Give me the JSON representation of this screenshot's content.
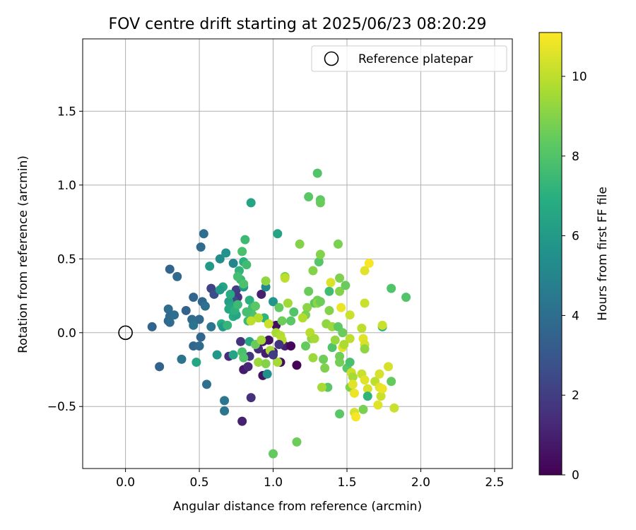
{
  "chart_data": {
    "type": "scatter",
    "title": "FOV centre drift starting at 2025/06/23 08:20:29",
    "xlabel": "Angular distance from reference (arcmin)",
    "ylabel": "Rotation from reference (arcmin)",
    "xlim": [
      -0.29,
      2.62
    ],
    "ylim": [
      -0.92,
      1.99
    ],
    "xticks": [
      {
        "v": 0.0,
        "label": "0.0"
      },
      {
        "v": 0.5,
        "label": "0.5"
      },
      {
        "v": 1.0,
        "label": "1.0"
      },
      {
        "v": 1.5,
        "label": "1.5"
      },
      {
        "v": 2.0,
        "label": "2.0"
      },
      {
        "v": 2.5,
        "label": "2.5"
      }
    ],
    "yticks": [
      {
        "v": -0.5,
        "label": "−0.5"
      },
      {
        "v": 0.0,
        "label": "0.0"
      },
      {
        "v": 0.5,
        "label": "0.5"
      },
      {
        "v": 1.0,
        "label": "1.0"
      },
      {
        "v": 1.5,
        "label": "1.5"
      }
    ],
    "grid": true,
    "legend": {
      "position": "top-right",
      "label": "Reference platepar"
    },
    "reference_point": {
      "x": 0.0,
      "y": 0.0
    },
    "colorbar": {
      "label": "Hours from first FF file",
      "colormap": "viridis",
      "range": [
        0,
        11.1
      ],
      "ticks": [
        {
          "v": 0,
          "label": "0"
        },
        {
          "v": 2,
          "label": "2"
        },
        {
          "v": 4,
          "label": "4"
        },
        {
          "v": 6,
          "label": "6"
        },
        {
          "v": 8,
          "label": "8"
        },
        {
          "v": 10,
          "label": "10"
        }
      ]
    },
    "points": [
      {
        "x": 0.79,
        "y": -0.6,
        "c": 1.0
      },
      {
        "x": 0.85,
        "y": -0.44,
        "c": 1.5
      },
      {
        "x": 0.8,
        "y": -0.25,
        "c": 0.8
      },
      {
        "x": 0.83,
        "y": -0.23,
        "c": 1.2
      },
      {
        "x": 0.93,
        "y": -0.29,
        "c": 0.6
      },
      {
        "x": 0.95,
        "y": -0.14,
        "c": 0.9
      },
      {
        "x": 0.9,
        "y": -0.11,
        "c": 1.3
      },
      {
        "x": 0.93,
        "y": -0.06,
        "c": 0.7
      },
      {
        "x": 0.97,
        "y": -0.05,
        "c": 0.5
      },
      {
        "x": 1.0,
        "y": -0.13,
        "c": 1.1
      },
      {
        "x": 1.02,
        "y": 0.05,
        "c": 0.4
      },
      {
        "x": 1.05,
        "y": -0.2,
        "c": 0.3
      },
      {
        "x": 1.08,
        "y": -0.09,
        "c": 1.0
      },
      {
        "x": 1.12,
        "y": -0.09,
        "c": 0.2
      },
      {
        "x": 1.16,
        "y": -0.22,
        "c": 0.1
      },
      {
        "x": 0.92,
        "y": 0.26,
        "c": 1.0
      },
      {
        "x": 0.78,
        "y": -0.06,
        "c": 1.6
      },
      {
        "x": 0.75,
        "y": 0.29,
        "c": 2.0
      },
      {
        "x": 0.76,
        "y": 0.24,
        "c": 1.8
      },
      {
        "x": 0.58,
        "y": 0.3,
        "c": 2.2
      },
      {
        "x": 0.6,
        "y": 0.26,
        "c": 2.6
      },
      {
        "x": 0.7,
        "y": -0.16,
        "c": 1.4
      },
      {
        "x": 0.84,
        "y": -0.16,
        "c": 1.8
      },
      {
        "x": 0.73,
        "y": 0.22,
        "c": 2.4
      },
      {
        "x": 0.3,
        "y": 0.43,
        "c": 3.6
      },
      {
        "x": 0.35,
        "y": 0.38,
        "c": 3.8
      },
      {
        "x": 0.53,
        "y": 0.67,
        "c": 4.0
      },
      {
        "x": 0.51,
        "y": 0.58,
        "c": 3.9
      },
      {
        "x": 0.18,
        "y": 0.04,
        "c": 3.6
      },
      {
        "x": 0.23,
        "y": -0.23,
        "c": 3.5
      },
      {
        "x": 0.29,
        "y": 0.08,
        "c": 3.7
      },
      {
        "x": 0.3,
        "y": 0.11,
        "c": 3.8
      },
      {
        "x": 0.29,
        "y": 0.16,
        "c": 3.9
      },
      {
        "x": 0.33,
        "y": 0.12,
        "c": 4.0
      },
      {
        "x": 0.41,
        "y": 0.15,
        "c": 3.5
      },
      {
        "x": 0.46,
        "y": 0.24,
        "c": 3.6
      },
      {
        "x": 0.52,
        "y": 0.21,
        "c": 3.7
      },
      {
        "x": 0.54,
        "y": 0.18,
        "c": 4.1
      },
      {
        "x": 0.5,
        "y": 0.09,
        "c": 3.8
      },
      {
        "x": 0.45,
        "y": 0.09,
        "c": 3.9
      },
      {
        "x": 0.46,
        "y": 0.05,
        "c": 4.2
      },
      {
        "x": 0.51,
        "y": -0.03,
        "c": 3.6
      },
      {
        "x": 0.46,
        "y": -0.09,
        "c": 3.7
      },
      {
        "x": 0.5,
        "y": -0.09,
        "c": 3.8
      },
      {
        "x": 0.38,
        "y": -0.18,
        "c": 4.2
      },
      {
        "x": 0.55,
        "y": -0.35,
        "c": 4.0
      },
      {
        "x": 0.67,
        "y": -0.46,
        "c": 4.4
      },
      {
        "x": 0.67,
        "y": -0.53,
        "c": 4.3
      },
      {
        "x": 0.58,
        "y": 0.04,
        "c": 4.3
      },
      {
        "x": 0.3,
        "y": 0.07,
        "c": 3.9
      },
      {
        "x": 0.48,
        "y": -0.2,
        "c": 6.5
      },
      {
        "x": 0.57,
        "y": 0.45,
        "c": 6.0
      },
      {
        "x": 0.64,
        "y": 0.5,
        "c": 5.4
      },
      {
        "x": 0.68,
        "y": 0.54,
        "c": 5.6
      },
      {
        "x": 0.73,
        "y": 0.47,
        "c": 5.0
      },
      {
        "x": 0.66,
        "y": 0.31,
        "c": 6.5
      },
      {
        "x": 0.64,
        "y": 0.29,
        "c": 6.0
      },
      {
        "x": 0.7,
        "y": 0.21,
        "c": 6.2
      },
      {
        "x": 0.72,
        "y": 0.18,
        "c": 6.4
      },
      {
        "x": 0.7,
        "y": 0.16,
        "c": 6.6
      },
      {
        "x": 0.73,
        "y": 0.11,
        "c": 6.8
      },
      {
        "x": 0.65,
        "y": 0.06,
        "c": 7.0
      },
      {
        "x": 0.66,
        "y": 0.04,
        "c": 6.0
      },
      {
        "x": 0.73,
        "y": -0.15,
        "c": 6.4
      },
      {
        "x": 0.8,
        "y": 0.31,
        "c": 5.8
      },
      {
        "x": 0.78,
        "y": 0.36,
        "c": 7.4
      },
      {
        "x": 0.8,
        "y": 0.48,
        "c": 7.0
      },
      {
        "x": 0.82,
        "y": 0.46,
        "c": 7.6
      },
      {
        "x": 0.79,
        "y": 0.55,
        "c": 7.8
      },
      {
        "x": 0.81,
        "y": 0.63,
        "c": 7.5
      },
      {
        "x": 0.85,
        "y": 0.88,
        "c": 6.4
      },
      {
        "x": 0.84,
        "y": 0.22,
        "c": 7.0
      },
      {
        "x": 0.86,
        "y": 0.17,
        "c": 7.6
      },
      {
        "x": 0.86,
        "y": 0.12,
        "c": 7.9
      },
      {
        "x": 0.83,
        "y": 0.08,
        "c": 7.5
      },
      {
        "x": 0.84,
        "y": -0.06,
        "c": 6.6
      },
      {
        "x": 0.79,
        "y": -0.13,
        "c": 7.8
      },
      {
        "x": 0.8,
        "y": -0.17,
        "c": 8.0
      },
      {
        "x": 0.95,
        "y": 0.31,
        "c": 5.2
      },
      {
        "x": 0.94,
        "y": 0.1,
        "c": 7.2
      },
      {
        "x": 0.96,
        "y": -0.28,
        "c": 5.5
      },
      {
        "x": 1.0,
        "y": 0.21,
        "c": 5.8
      },
      {
        "x": 1.03,
        "y": 0.67,
        "c": 6.4
      },
      {
        "x": 1.0,
        "y": -0.82,
        "c": 8.4
      },
      {
        "x": 1.16,
        "y": -0.74,
        "c": 8.6
      },
      {
        "x": 1.08,
        "y": 0.38,
        "c": 8.9
      },
      {
        "x": 1.04,
        "y": 0.17,
        "c": 8.4
      },
      {
        "x": 1.06,
        "y": 0.08,
        "c": 8.6
      },
      {
        "x": 1.12,
        "y": 0.08,
        "c": 8.2
      },
      {
        "x": 1.14,
        "y": 0.14,
        "c": 8.0
      },
      {
        "x": 1.18,
        "y": 0.6,
        "c": 9.0
      },
      {
        "x": 1.22,
        "y": -0.09,
        "c": 8.4
      },
      {
        "x": 1.24,
        "y": 0.92,
        "c": 8.2
      },
      {
        "x": 1.3,
        "y": 1.08,
        "c": 8.0
      },
      {
        "x": 1.32,
        "y": 0.9,
        "c": 8.3
      },
      {
        "x": 1.32,
        "y": 0.88,
        "c": 8.5
      },
      {
        "x": 1.31,
        "y": 0.48,
        "c": 8.1
      },
      {
        "x": 1.32,
        "y": 0.53,
        "c": 9.0
      },
      {
        "x": 1.27,
        "y": 0.42,
        "c": 9.0
      },
      {
        "x": 1.24,
        "y": 0.28,
        "c": 8.5
      },
      {
        "x": 1.28,
        "y": 0.2,
        "c": 8.3
      },
      {
        "x": 1.3,
        "y": 0.22,
        "c": 8.7
      },
      {
        "x": 1.23,
        "y": 0.17,
        "c": 9.1
      },
      {
        "x": 1.22,
        "y": 0.12,
        "c": 8.8
      },
      {
        "x": 1.26,
        "y": -0.04,
        "c": 9.2
      },
      {
        "x": 1.27,
        "y": -0.17,
        "c": 9.4
      },
      {
        "x": 1.34,
        "y": -0.18,
        "c": 8.6
      },
      {
        "x": 1.35,
        "y": -0.24,
        "c": 8.9
      },
      {
        "x": 1.37,
        "y": -0.37,
        "c": 8.2
      },
      {
        "x": 1.33,
        "y": -0.37,
        "c": 9.6
      },
      {
        "x": 1.38,
        "y": 0.28,
        "c": 7.6
      },
      {
        "x": 1.39,
        "y": 0.34,
        "c": 10.5
      },
      {
        "x": 1.44,
        "y": 0.6,
        "c": 8.8
      },
      {
        "x": 1.45,
        "y": 0.37,
        "c": 8.9
      },
      {
        "x": 1.45,
        "y": 0.28,
        "c": 9.0
      },
      {
        "x": 1.49,
        "y": 0.32,
        "c": 8.5
      },
      {
        "x": 1.46,
        "y": 0.17,
        "c": 10.8
      },
      {
        "x": 1.36,
        "y": 0.06,
        "c": 9.2
      },
      {
        "x": 1.4,
        "y": 0.04,
        "c": 9.4
      },
      {
        "x": 1.44,
        "y": 0.04,
        "c": 8.3
      },
      {
        "x": 1.47,
        "y": 0.0,
        "c": 8.5
      },
      {
        "x": 1.4,
        "y": -0.1,
        "c": 8.0
      },
      {
        "x": 1.45,
        "y": -0.16,
        "c": 8.6
      },
      {
        "x": 1.45,
        "y": -0.2,
        "c": 8.7
      },
      {
        "x": 1.47,
        "y": -0.1,
        "c": 10.6
      },
      {
        "x": 1.5,
        "y": -0.24,
        "c": 8.2
      },
      {
        "x": 1.52,
        "y": 0.12,
        "c": 10.2
      },
      {
        "x": 1.52,
        "y": -0.04,
        "c": 10.0
      },
      {
        "x": 1.52,
        "y": -0.2,
        "c": 7.8
      },
      {
        "x": 1.52,
        "y": -0.37,
        "c": 9.0
      },
      {
        "x": 1.53,
        "y": -0.27,
        "c": 10.2
      },
      {
        "x": 1.54,
        "y": -0.3,
        "c": 9.6
      },
      {
        "x": 1.54,
        "y": -0.35,
        "c": 10.6
      },
      {
        "x": 1.55,
        "y": -0.41,
        "c": 10.8
      },
      {
        "x": 1.55,
        "y": -0.54,
        "c": 10.4
      },
      {
        "x": 1.56,
        "y": -0.57,
        "c": 11.0
      },
      {
        "x": 1.45,
        "y": -0.55,
        "c": 8.2
      },
      {
        "x": 1.6,
        "y": 0.03,
        "c": 10.0
      },
      {
        "x": 1.61,
        "y": -0.04,
        "c": 10.6
      },
      {
        "x": 1.62,
        "y": -0.08,
        "c": 10.4
      },
      {
        "x": 1.62,
        "y": -0.11,
        "c": 9.2
      },
      {
        "x": 1.6,
        "y": -0.28,
        "c": 10.2
      },
      {
        "x": 1.62,
        "y": -0.32,
        "c": 10.6
      },
      {
        "x": 1.64,
        "y": -0.38,
        "c": 10.4
      },
      {
        "x": 1.64,
        "y": -0.43,
        "c": 7.2
      },
      {
        "x": 1.61,
        "y": -0.52,
        "c": 8.8
      },
      {
        "x": 1.62,
        "y": 0.2,
        "c": 10.2
      },
      {
        "x": 1.62,
        "y": 0.42,
        "c": 10.6
      },
      {
        "x": 1.65,
        "y": 0.47,
        "c": 11.0
      },
      {
        "x": 1.69,
        "y": -0.33,
        "c": 10.0
      },
      {
        "x": 1.72,
        "y": -0.28,
        "c": 10.4
      },
      {
        "x": 1.72,
        "y": -0.37,
        "c": 10.6
      },
      {
        "x": 1.73,
        "y": -0.43,
        "c": 10.2
      },
      {
        "x": 1.74,
        "y": -0.38,
        "c": 10.8
      },
      {
        "x": 1.71,
        "y": -0.49,
        "c": 10.6
      },
      {
        "x": 1.74,
        "y": 0.04,
        "c": 7.0
      },
      {
        "x": 1.74,
        "y": 0.05,
        "c": 10.2
      },
      {
        "x": 1.78,
        "y": -0.23,
        "c": 10.4
      },
      {
        "x": 1.8,
        "y": 0.3,
        "c": 8.0
      },
      {
        "x": 1.8,
        "y": -0.33,
        "c": 8.4
      },
      {
        "x": 1.82,
        "y": -0.51,
        "c": 10.2
      },
      {
        "x": 1.9,
        "y": 0.24,
        "c": 8.0
      },
      {
        "x": 1.3,
        "y": 0.2,
        "c": 9.2
      },
      {
        "x": 1.32,
        "y": 0.21,
        "c": 8.6
      },
      {
        "x": 1.02,
        "y": 0.0,
        "c": 9.6
      },
      {
        "x": 1.05,
        "y": -0.02,
        "c": 9.8
      },
      {
        "x": 0.97,
        "y": 0.06,
        "c": 10.2
      },
      {
        "x": 0.9,
        "y": 0.1,
        "c": 9.8
      },
      {
        "x": 0.85,
        "y": 0.08,
        "c": 10.0
      },
      {
        "x": 0.9,
        "y": -0.2,
        "c": 9.4
      },
      {
        "x": 1.03,
        "y": -0.2,
        "c": 9.6
      },
      {
        "x": 1.06,
        "y": -0.05,
        "c": 9.9
      },
      {
        "x": 0.98,
        "y": -0.12,
        "c": 9.6
      },
      {
        "x": 1.1,
        "y": 0.2,
        "c": 9.5
      },
      {
        "x": 1.2,
        "y": 0.1,
        "c": 9.8
      },
      {
        "x": 1.25,
        "y": 0.0,
        "c": 9.9
      },
      {
        "x": 1.28,
        "y": -0.04,
        "c": 9.6
      },
      {
        "x": 1.08,
        "y": 0.37,
        "c": 10.0
      },
      {
        "x": 0.95,
        "y": 0.35,
        "c": 9.2
      },
      {
        "x": 1.38,
        "y": 0.15,
        "c": 9.0
      },
      {
        "x": 1.42,
        "y": -0.05,
        "c": 9.3
      },
      {
        "x": 1.48,
        "y": -0.08,
        "c": 9.7
      },
      {
        "x": 0.88,
        "y": -0.08,
        "c": 8.5
      },
      {
        "x": 0.92,
        "y": -0.05,
        "c": 9.5
      },
      {
        "x": 0.95,
        "y": -0.21,
        "c": 9.0
      },
      {
        "x": 0.75,
        "y": 0.12,
        "c": 6.5
      },
      {
        "x": 0.77,
        "y": 0.42,
        "c": 7.2
      },
      {
        "x": 0.76,
        "y": 0.38,
        "c": 7.7
      },
      {
        "x": 0.8,
        "y": 0.33,
        "c": 7.9
      },
      {
        "x": 0.71,
        "y": 0.26,
        "c": 6.8
      },
      {
        "x": 0.74,
        "y": 0.15,
        "c": 7.1
      },
      {
        "x": 0.69,
        "y": 0.05,
        "c": 7.3
      },
      {
        "x": 0.76,
        "y": 0.19,
        "c": 7.5
      },
      {
        "x": 0.62,
        "y": -0.15,
        "c": 5.9
      },
      {
        "x": 0.82,
        "y": 0.14,
        "c": 7.7
      },
      {
        "x": 0.88,
        "y": 0.18,
        "c": 8.2
      },
      {
        "x": 1.0,
        "y": -0.15,
        "c": 2.0
      },
      {
        "x": 1.04,
        "y": -0.08,
        "c": 1.7
      }
    ]
  }
}
